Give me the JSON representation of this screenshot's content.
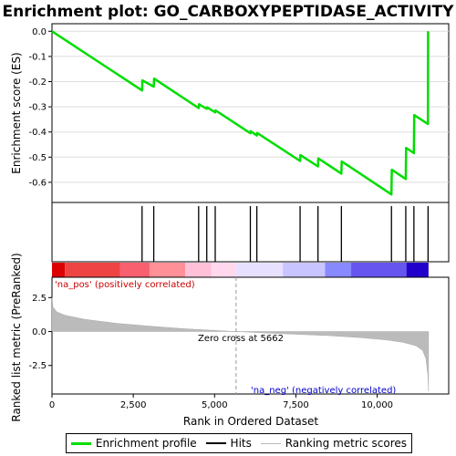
{
  "title": "Enrichment plot: GO_CARBOXYPEPTIDASE_ACTIVITY",
  "legend": [
    {
      "label": "Enrichment profile",
      "color": "#00dd00",
      "width": 3
    },
    {
      "label": "Hits",
      "color": "#000000",
      "width": 2
    },
    {
      "label": "Ranking metric scores",
      "color": "#bbbbbb",
      "width": 1
    }
  ],
  "annotations": {
    "pos": "'na_pos' (positively correlated)",
    "neg": "'na_neg' (negatively correlated)",
    "zero_cross": "Zero cross at 5662"
  },
  "chart_data": {
    "type": "line",
    "xlabel": "Rank in Ordered Dataset",
    "xlim": [
      0,
      12200
    ],
    "x_ticks": [
      0,
      2500,
      5000,
      7500,
      10000
    ],
    "x_tick_labels": [
      "0",
      "2,500",
      "5,000",
      "7,500",
      "10,000"
    ],
    "es_panel": {
      "ylabel": "Enrichment score (ES)",
      "ylim": [
        -0.68,
        0.03
      ],
      "y_ticks": [
        0.0,
        -0.1,
        -0.2,
        -0.3,
        -0.4,
        -0.5,
        -0.6
      ],
      "y_tick_labels": [
        "0.0",
        "-0.1",
        "-0.2",
        "-0.3",
        "-0.4",
        "-0.5",
        "-0.6"
      ],
      "color": "#00dd00",
      "points": [
        [
          0,
          0.0
        ],
        [
          2770,
          -0.235
        ],
        [
          2780,
          -0.195
        ],
        [
          3130,
          -0.22
        ],
        [
          3140,
          -0.188
        ],
        [
          4510,
          -0.305
        ],
        [
          4520,
          -0.29
        ],
        [
          4760,
          -0.308
        ],
        [
          4770,
          -0.302
        ],
        [
          5020,
          -0.322
        ],
        [
          5030,
          -0.314
        ],
        [
          6100,
          -0.405
        ],
        [
          6110,
          -0.397
        ],
        [
          6300,
          -0.414
        ],
        [
          6310,
          -0.404
        ],
        [
          7630,
          -0.515
        ],
        [
          7640,
          -0.492
        ],
        [
          8180,
          -0.537
        ],
        [
          8190,
          -0.505
        ],
        [
          8900,
          -0.565
        ],
        [
          8910,
          -0.517
        ],
        [
          10440,
          -0.648
        ],
        [
          10450,
          -0.55
        ],
        [
          10880,
          -0.587
        ],
        [
          10890,
          -0.463
        ],
        [
          11130,
          -0.484
        ],
        [
          11140,
          -0.333
        ],
        [
          11560,
          -0.368
        ],
        [
          11565,
          0.0
        ]
      ]
    },
    "hits": [
      2770,
      3130,
      4510,
      4760,
      5020,
      6100,
      6300,
      7630,
      8180,
      8900,
      10440,
      10880,
      11130,
      11565
    ],
    "ranking_panel": {
      "ylabel": "Ranked list metric (PreRanked)",
      "ylim": [
        -4.6,
        4.0
      ],
      "y_ticks": [
        2.5,
        0.0,
        -2.5
      ],
      "y_tick_labels": [
        "2.5",
        "0.0",
        "-2.5"
      ],
      "zero_cross": 5662,
      "total": 11580,
      "color": "#bbbbbb",
      "profile": [
        [
          0,
          2.5
        ],
        [
          30,
          1.8
        ],
        [
          150,
          1.45
        ],
        [
          400,
          1.2
        ],
        [
          1000,
          0.9
        ],
        [
          2000,
          0.6
        ],
        [
          3000,
          0.4
        ],
        [
          4000,
          0.22
        ],
        [
          5000,
          0.08
        ],
        [
          5662,
          0.0
        ],
        [
          6500,
          -0.1
        ],
        [
          7500,
          -0.2
        ],
        [
          8500,
          -0.3
        ],
        [
          9500,
          -0.45
        ],
        [
          10300,
          -0.62
        ],
        [
          10800,
          -0.8
        ],
        [
          11200,
          -1.05
        ],
        [
          11400,
          -1.4
        ],
        [
          11500,
          -2.0
        ],
        [
          11560,
          -3.2
        ],
        [
          11580,
          -4.4
        ]
      ]
    },
    "colorbar": {
      "segments": [
        {
          "from": 0,
          "to": 400,
          "color": "#dd0000"
        },
        {
          "from": 400,
          "to": 2100,
          "color": "#ee4444"
        },
        {
          "from": 2100,
          "to": 3000,
          "color": "#f86070"
        },
        {
          "from": 3000,
          "to": 4100,
          "color": "#ff9098"
        },
        {
          "from": 4100,
          "to": 4900,
          "color": "#ffc0d8"
        },
        {
          "from": 4900,
          "to": 5662,
          "color": "#ffd8ee"
        },
        {
          "from": 5662,
          "to": 7100,
          "color": "#e8e0ff"
        },
        {
          "from": 7100,
          "to": 8400,
          "color": "#c8c4ff"
        },
        {
          "from": 8400,
          "to": 9200,
          "color": "#8888ff"
        },
        {
          "from": 9200,
          "to": 10900,
          "color": "#6655ee"
        },
        {
          "from": 10900,
          "to": 11580,
          "color": "#2200cc"
        }
      ]
    }
  }
}
